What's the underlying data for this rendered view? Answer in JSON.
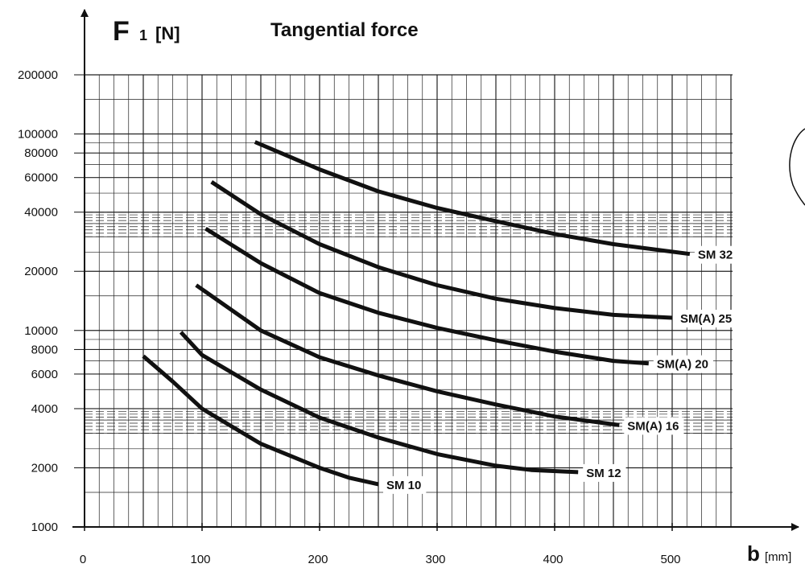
{
  "chart_data": {
    "type": "line",
    "title": "Tangential force",
    "ylabel": {
      "main": "F",
      "sub": "1",
      "unit": "[N]"
    },
    "xlabel": {
      "main": "b",
      "unit": "[mm]"
    },
    "y_scale": "log",
    "xlim": [
      0,
      550
    ],
    "ylim": [
      1000,
      200000
    ],
    "x_ticks": [
      "0",
      "100",
      "200",
      "300",
      "400",
      "500"
    ],
    "y_ticks": [
      "200000",
      "100000",
      "80000",
      "60000",
      "40000",
      "20000",
      "10000",
      "8000",
      "6000",
      "4000",
      "2000",
      "1000"
    ],
    "grid": true,
    "series": [
      {
        "name": "SM 32",
        "points": [
          [
            145,
            91000
          ],
          [
            200,
            66000
          ],
          [
            250,
            51000
          ],
          [
            300,
            42000
          ],
          [
            350,
            36000
          ],
          [
            400,
            31000
          ],
          [
            450,
            27500
          ],
          [
            515,
            24500
          ]
        ]
      },
      {
        "name": "SM(A) 25",
        "points": [
          [
            108,
            57000
          ],
          [
            150,
            39000
          ],
          [
            200,
            27500
          ],
          [
            250,
            21000
          ],
          [
            300,
            17000
          ],
          [
            350,
            14500
          ],
          [
            400,
            13000
          ],
          [
            450,
            12000
          ],
          [
            500,
            11600
          ]
        ]
      },
      {
        "name": "SM(A) 20",
        "points": [
          [
            103,
            33000
          ],
          [
            150,
            22000
          ],
          [
            200,
            15500
          ],
          [
            250,
            12300
          ],
          [
            300,
            10300
          ],
          [
            350,
            8900
          ],
          [
            400,
            7800
          ],
          [
            450,
            7000
          ],
          [
            480,
            6800
          ]
        ]
      },
      {
        "name": "SM(A) 16",
        "points": [
          [
            95,
            17000
          ],
          [
            150,
            10000
          ],
          [
            200,
            7300
          ],
          [
            250,
            5900
          ],
          [
            300,
            4900
          ],
          [
            350,
            4200
          ],
          [
            400,
            3650
          ],
          [
            455,
            3300
          ]
        ]
      },
      {
        "name": "SM 12",
        "points": [
          [
            82,
            9800
          ],
          [
            100,
            7500
          ],
          [
            150,
            5000
          ],
          [
            200,
            3600
          ],
          [
            250,
            2850
          ],
          [
            300,
            2350
          ],
          [
            350,
            2050
          ],
          [
            380,
            1950
          ],
          [
            420,
            1900
          ]
        ]
      },
      {
        "name": "SM 10",
        "points": [
          [
            50,
            7400
          ],
          [
            75,
            5500
          ],
          [
            100,
            4000
          ],
          [
            150,
            2650
          ],
          [
            200,
            2000
          ],
          [
            225,
            1780
          ],
          [
            250,
            1650
          ]
        ]
      }
    ]
  }
}
